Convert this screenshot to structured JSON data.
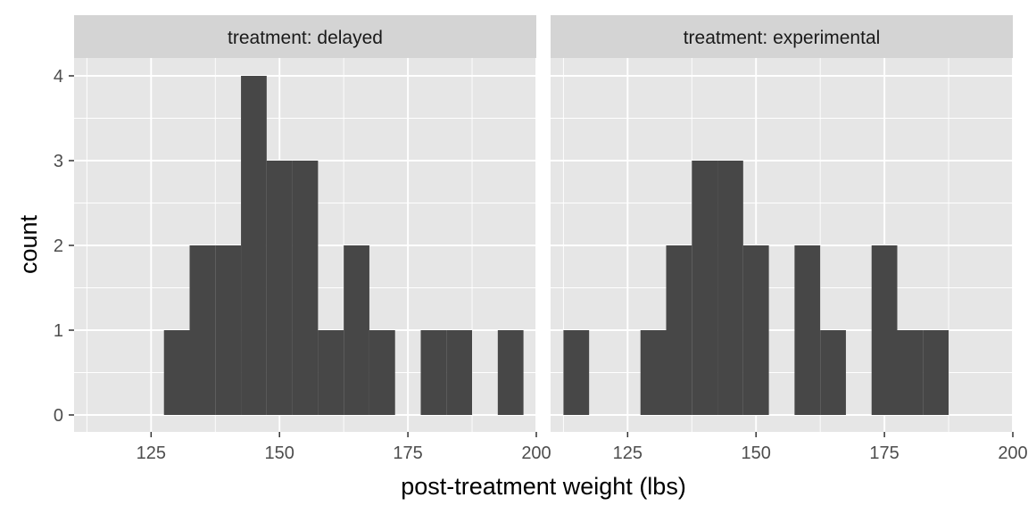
{
  "chart_data": {
    "type": "bar",
    "xlabel": "post-treatment weight (lbs)",
    "ylabel": "count",
    "xlim": [
      110,
      200
    ],
    "ylim": [
      0,
      4
    ],
    "x_ticks": [
      "125",
      "150",
      "175",
      "200"
    ],
    "y_ticks": [
      "0",
      "1",
      "2",
      "3",
      "4"
    ],
    "bin_width": 5,
    "grid": true,
    "colors": {
      "bar": "#474747",
      "panel": "#e6e6e6",
      "strip": "#d4d4d4",
      "gridline": "#ffffff"
    },
    "panels": [
      {
        "title": "treatment: delayed",
        "bins": [
          {
            "x0": 127.5,
            "x1": 132.5,
            "count": 1
          },
          {
            "x0": 132.5,
            "x1": 137.5,
            "count": 2
          },
          {
            "x0": 137.5,
            "x1": 142.5,
            "count": 2
          },
          {
            "x0": 142.5,
            "x1": 147.5,
            "count": 4
          },
          {
            "x0": 147.5,
            "x1": 152.5,
            "count": 3
          },
          {
            "x0": 152.5,
            "x1": 157.5,
            "count": 3
          },
          {
            "x0": 157.5,
            "x1": 162.5,
            "count": 1
          },
          {
            "x0": 162.5,
            "x1": 167.5,
            "count": 2
          },
          {
            "x0": 167.5,
            "x1": 172.5,
            "count": 1
          },
          {
            "x0": 177.5,
            "x1": 182.5,
            "count": 1
          },
          {
            "x0": 182.5,
            "x1": 187.5,
            "count": 1
          },
          {
            "x0": 192.5,
            "x1": 197.5,
            "count": 1
          }
        ]
      },
      {
        "title": "treatment: experimental",
        "bins": [
          {
            "x0": 112.5,
            "x1": 117.5,
            "count": 1
          },
          {
            "x0": 127.5,
            "x1": 132.5,
            "count": 1
          },
          {
            "x0": 132.5,
            "x1": 137.5,
            "count": 2
          },
          {
            "x0": 137.5,
            "x1": 142.5,
            "count": 3
          },
          {
            "x0": 142.5,
            "x1": 147.5,
            "count": 3
          },
          {
            "x0": 147.5,
            "x1": 152.5,
            "count": 2
          },
          {
            "x0": 157.5,
            "x1": 162.5,
            "count": 2
          },
          {
            "x0": 162.5,
            "x1": 167.5,
            "count": 1
          },
          {
            "x0": 172.5,
            "x1": 177.5,
            "count": 2
          },
          {
            "x0": 177.5,
            "x1": 182.5,
            "count": 1
          },
          {
            "x0": 182.5,
            "x1": 187.5,
            "count": 1
          }
        ]
      }
    ]
  }
}
